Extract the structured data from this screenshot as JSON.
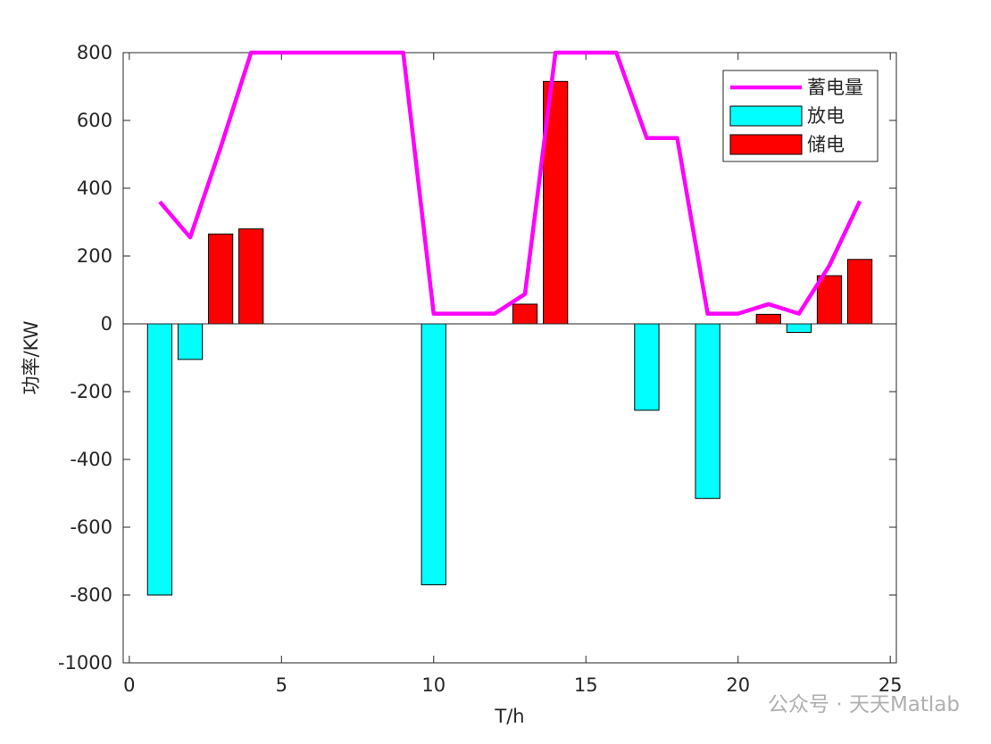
{
  "chart_data": {
    "type": "bar",
    "xlabel": "T/h",
    "ylabel": "功率/KW",
    "x": [
      1,
      2,
      3,
      4,
      5,
      6,
      7,
      8,
      9,
      10,
      11,
      12,
      13,
      14,
      15,
      16,
      17,
      18,
      19,
      20,
      21,
      22,
      23,
      24
    ],
    "series": [
      {
        "name": "蓄电量",
        "type": "line",
        "color": "#ff00ff",
        "values": [
          360,
          255,
          520,
          800,
          800,
          800,
          800,
          800,
          800,
          30,
          30,
          30,
          88,
          800,
          800,
          800,
          548,
          548,
          30,
          30,
          58,
          30,
          172,
          362
        ]
      },
      {
        "name": "放电",
        "type": "bar",
        "color": "#00ffff",
        "values": [
          -800,
          -105,
          null,
          null,
          null,
          null,
          null,
          null,
          null,
          -770,
          null,
          null,
          null,
          null,
          null,
          null,
          -255,
          null,
          -515,
          null,
          null,
          -25,
          null,
          null
        ]
      },
      {
        "name": "储电",
        "type": "bar",
        "color": "#ff0000",
        "values": [
          null,
          null,
          265,
          280,
          null,
          null,
          null,
          null,
          null,
          null,
          null,
          null,
          58,
          715,
          null,
          null,
          null,
          null,
          null,
          null,
          28,
          null,
          142,
          190
        ]
      }
    ],
    "xlim": [
      -0.2,
      25.2
    ],
    "xticks": [
      0,
      5,
      10,
      15,
      20,
      25
    ],
    "ylim": [
      -1000,
      800
    ],
    "yticks": [
      -1000,
      -800,
      -600,
      -400,
      -200,
      0,
      200,
      400,
      600,
      800
    ],
    "legend": "upper right",
    "watermark": "公众号 · 天天Matlab"
  }
}
